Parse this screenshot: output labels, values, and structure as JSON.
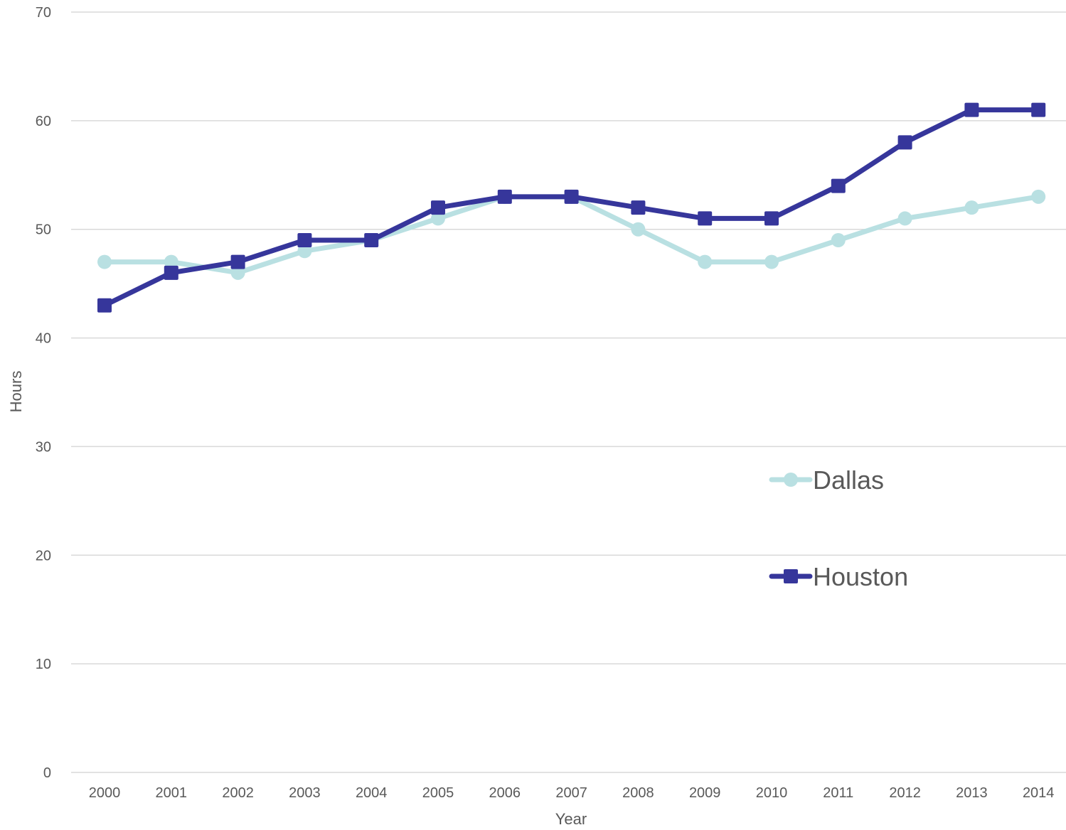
{
  "chart_data": {
    "type": "line",
    "title": "",
    "xlabel": "Year",
    "ylabel": "Hours",
    "x": [
      "2000",
      "2001",
      "2002",
      "2003",
      "2004",
      "2005",
      "2006",
      "2007",
      "2008",
      "2009",
      "2010",
      "2011",
      "2012",
      "2013",
      "2014"
    ],
    "ylim": [
      0,
      70
    ],
    "yticks": [
      0,
      10,
      20,
      30,
      40,
      50,
      60,
      70
    ],
    "grid": "horizontal",
    "legend_position": "right-middle",
    "series": [
      {
        "name": "Dallas",
        "color": "#b9e0e2",
        "marker": "circle",
        "values": [
          47,
          47,
          46,
          48,
          49,
          51,
          53,
          53,
          50,
          47,
          47,
          49,
          51,
          52,
          53
        ]
      },
      {
        "name": "Houston",
        "color": "#36369b",
        "marker": "square",
        "values": [
          43,
          46,
          47,
          49,
          49,
          52,
          53,
          53,
          52,
          51,
          51,
          54,
          58,
          61,
          61
        ]
      }
    ]
  }
}
